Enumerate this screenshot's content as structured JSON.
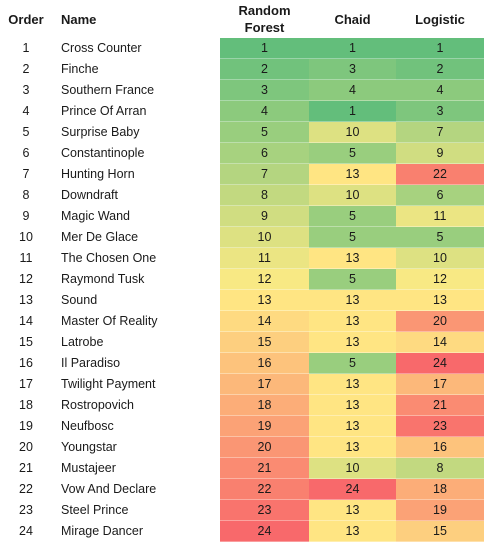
{
  "headers": {
    "order": "Order",
    "name": "Name",
    "rf": "Random Forest",
    "chaid": "Chaid",
    "logistic": "Logistic"
  },
  "colors": {
    "best": "#63be7b",
    "mid": "#ffeb84",
    "worst": "#f8696b"
  },
  "scale_max": 24,
  "rows": [
    {
      "order": "1",
      "name": "Cross Counter",
      "rf": "1",
      "chaid": "1",
      "logistic": "1"
    },
    {
      "order": "2",
      "name": "Finche",
      "rf": "2",
      "chaid": "3",
      "logistic": "2"
    },
    {
      "order": "3",
      "name": "Southern France",
      "rf": "3",
      "chaid": "4",
      "logistic": "4"
    },
    {
      "order": "4",
      "name": "Prince Of Arran",
      "rf": "4",
      "chaid": "1",
      "logistic": "3"
    },
    {
      "order": "5",
      "name": "Surprise Baby",
      "rf": "5",
      "chaid": "10",
      "logistic": "7"
    },
    {
      "order": "6",
      "name": "Constantinople",
      "rf": "6",
      "chaid": "5",
      "logistic": "9"
    },
    {
      "order": "7",
      "name": "Hunting Horn",
      "rf": "7",
      "chaid": "13",
      "logistic": "22"
    },
    {
      "order": "8",
      "name": "Downdraft",
      "rf": "8",
      "chaid": "10",
      "logistic": "6"
    },
    {
      "order": "9",
      "name": "Magic Wand",
      "rf": "9",
      "chaid": "5",
      "logistic": "11"
    },
    {
      "order": "10",
      "name": "Mer De Glace",
      "rf": "10",
      "chaid": "5",
      "logistic": "5"
    },
    {
      "order": "11",
      "name": "The Chosen One",
      "rf": "11",
      "chaid": "13",
      "logistic": "10"
    },
    {
      "order": "12",
      "name": "Raymond Tusk",
      "rf": "12",
      "chaid": "5",
      "logistic": "12"
    },
    {
      "order": "13",
      "name": "Sound",
      "rf": "13",
      "chaid": "13",
      "logistic": "13"
    },
    {
      "order": "14",
      "name": "Master Of Reality",
      "rf": "14",
      "chaid": "13",
      "logistic": "20"
    },
    {
      "order": "15",
      "name": "Latrobe",
      "rf": "15",
      "chaid": "13",
      "logistic": "14"
    },
    {
      "order": "16",
      "name": "Il Paradiso",
      "rf": "16",
      "chaid": "5",
      "logistic": "24"
    },
    {
      "order": "17",
      "name": "Twilight Payment",
      "rf": "17",
      "chaid": "13",
      "logistic": "17"
    },
    {
      "order": "18",
      "name": "Rostropovich",
      "rf": "18",
      "chaid": "13",
      "logistic": "21"
    },
    {
      "order": "19",
      "name": "Neufbosc",
      "rf": "19",
      "chaid": "13",
      "logistic": "23"
    },
    {
      "order": "20",
      "name": "Youngstar",
      "rf": "20",
      "chaid": "13",
      "logistic": "16"
    },
    {
      "order": "21",
      "name": "Mustajeer",
      "rf": "21",
      "chaid": "10",
      "logistic": "8"
    },
    {
      "order": "22",
      "name": "Vow And Declare",
      "rf": "22",
      "chaid": "24",
      "logistic": "18"
    },
    {
      "order": "23",
      "name": "Steel Prince",
      "rf": "23",
      "chaid": "13",
      "logistic": "19"
    },
    {
      "order": "24",
      "name": "Mirage Dancer",
      "rf": "24",
      "chaid": "13",
      "logistic": "15"
    }
  ]
}
